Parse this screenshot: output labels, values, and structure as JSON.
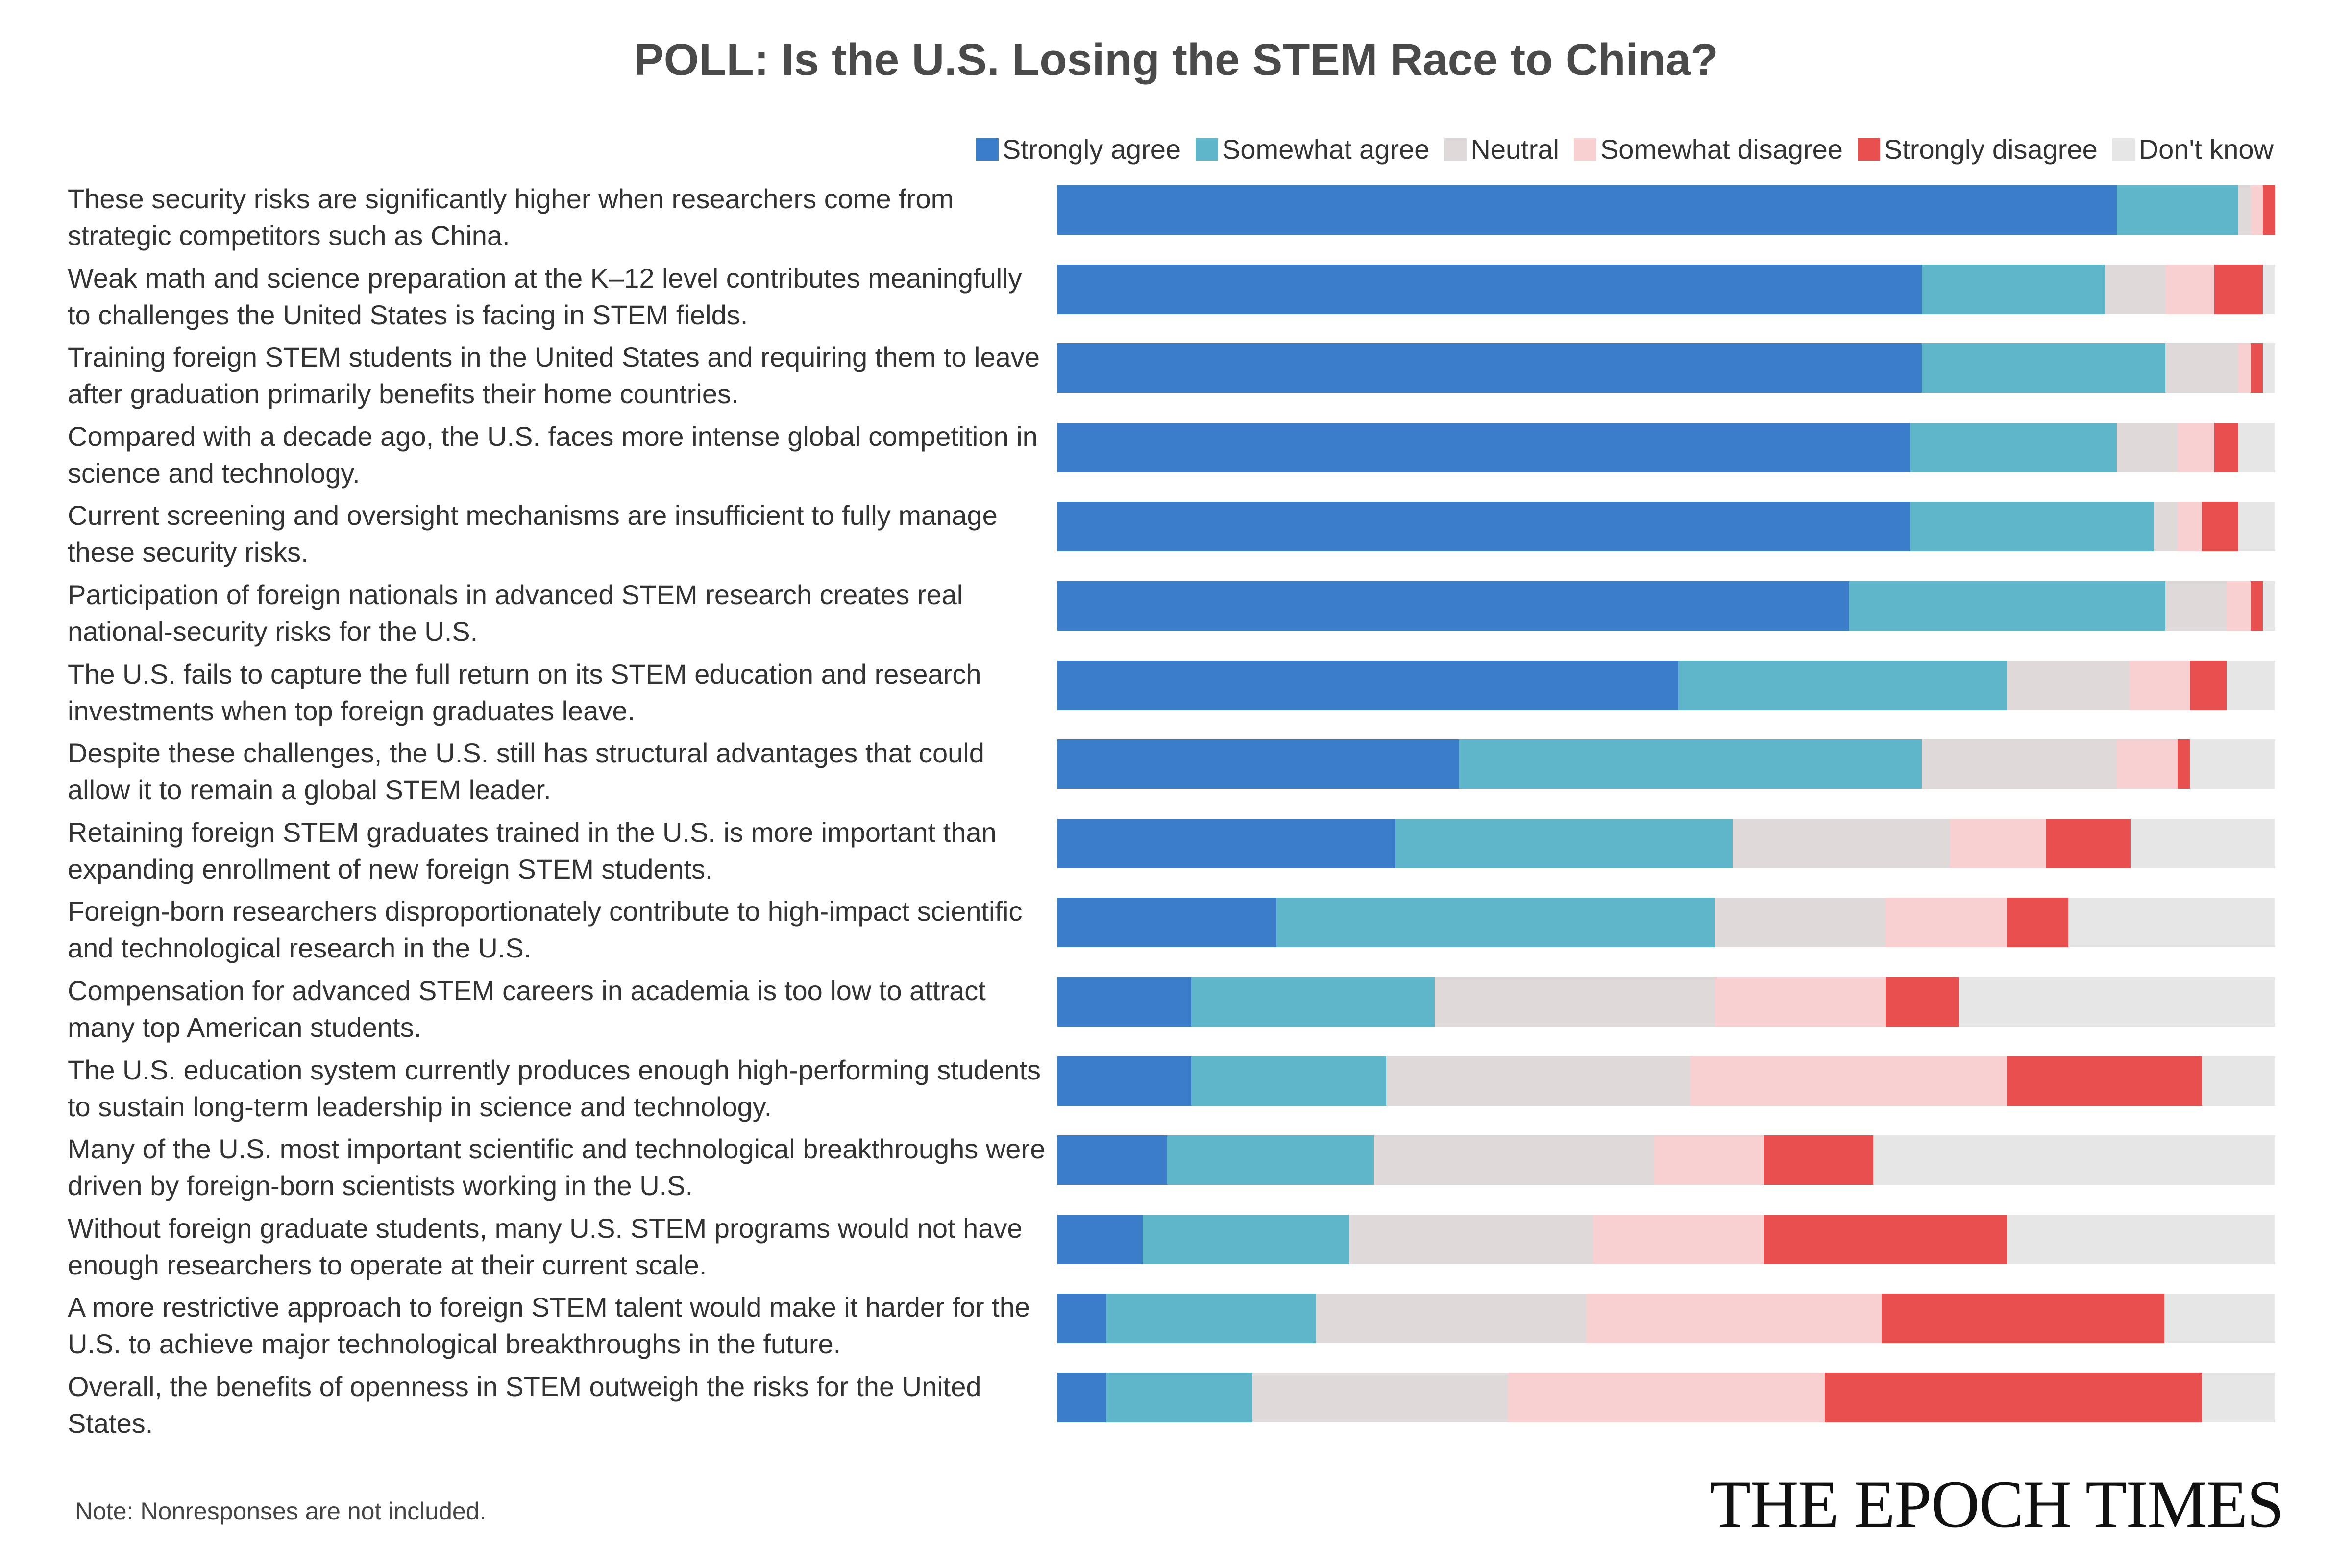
{
  "chart_data": {
    "type": "bar",
    "orientation": "horizontal",
    "stacked": true,
    "normalized_percent": true,
    "title": "POLL: Is the U.S. Losing the STEM Race to China?",
    "legend_position": "top-right",
    "grid": false,
    "series": [
      {
        "name": "Strongly agree",
        "color": "#3c7dc9",
        "values": [
          87,
          71,
          71,
          70,
          70,
          65,
          51,
          33,
          28,
          18,
          11,
          11,
          9,
          7,
          4,
          4
        ]
      },
      {
        "name": "Somewhat agree",
        "color": "#5fb6cb",
        "values": [
          10,
          15,
          20,
          17,
          20,
          26,
          27,
          38,
          28,
          36,
          20,
          16,
          17,
          17,
          17,
          12
        ]
      },
      {
        "name": "Neutral",
        "color": "#dfd9d9",
        "values": [
          1,
          5,
          6,
          5,
          2,
          5,
          10,
          16,
          18,
          14,
          23,
          25,
          23,
          20,
          22,
          21
        ]
      },
      {
        "name": "Somewhat disagree",
        "color": "#f9d0d2",
        "values": [
          1,
          4,
          1,
          3,
          2,
          2,
          5,
          5,
          8,
          10,
          14,
          26,
          9,
          14,
          24,
          26
        ]
      },
      {
        "name": "Strongly disagree",
        "color": "#e85050",
        "values": [
          1,
          4,
          1,
          2,
          3,
          1,
          3,
          1,
          7,
          5,
          6,
          16,
          9,
          20,
          23,
          31
        ]
      },
      {
        "name": "Don't know",
        "color": "#e6e6e6",
        "values": [
          0,
          1,
          1,
          3,
          3,
          1,
          4,
          7,
          12,
          17,
          26,
          6,
          33,
          22,
          9,
          6
        ]
      }
    ],
    "categories": [
      "These security risks are significantly higher when researchers come from strategic competitors such as China.",
      "Weak math and science preparation at the K–12 level contributes meaningfully to challenges the United States is facing in STEM fields.",
      "Training foreign STEM students in the United States and requiring them to leave after graduation primarily benefits their home countries.",
      "Compared with a decade ago, the U.S. faces more intense global competition in science and technology.",
      "Current screening and oversight mechanisms are insufficient to fully manage these security risks.",
      "Participation of foreign nationals in advanced STEM research creates real national-security risks for the U.S.",
      "The U.S. fails to capture the full return on its STEM education and research investments when top foreign graduates leave.",
      "Despite these challenges, the U.S. still has structural advantages that could allow it to remain a global STEM leader.",
      "Retaining foreign STEM graduates trained in the U.S. is more important than expanding enrollment of new foreign STEM students.",
      "Foreign-born researchers disproportionately contribute to high-impact scientific and technological research in the U.S.",
      "Compensation for advanced STEM careers in academia is too low to attract many top American students.",
      "The U.S. education system currently produces enough high-performing students to sustain long-term leadership in science and technology.",
      "Many of the U.S. most important scientific and technological breakthroughs were driven by foreign-born scientists working in the U.S.",
      "Without foreign graduate students, many U.S. STEM programs would not have enough researchers to operate at their current scale.",
      "A more restrictive approach to foreign STEM talent would make it harder for the U.S. to achieve major technological breakthroughs in the future.",
      "Overall, the benefits of openness in STEM outweigh the risks for the United States."
    ]
  },
  "note": "Note: Nonresponses are not included.",
  "logo": "THE EPOCH TIMES"
}
